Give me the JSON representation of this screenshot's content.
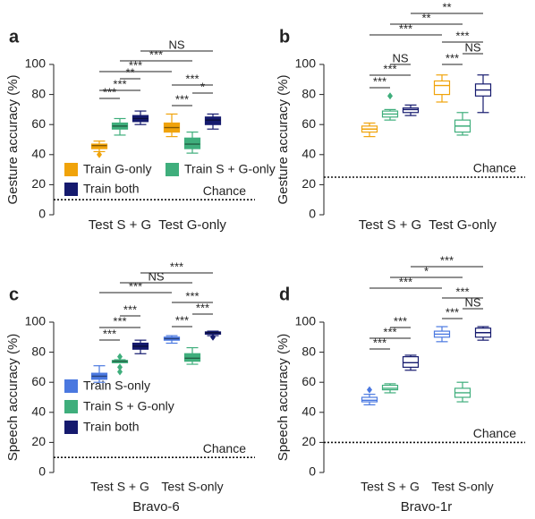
{
  "chart_data": [
    {
      "type": "box",
      "panel": "a",
      "ylabel": "Gesture accuracy (%)",
      "categories": [
        "Test S + G",
        "Test G-only"
      ],
      "ylim": [
        0,
        100
      ],
      "yticks": [
        0,
        20,
        40,
        60,
        80,
        100
      ],
      "filled": true,
      "chance": {
        "value": 10,
        "label": "Chance"
      },
      "series": [
        {
          "name": "Train G-only",
          "color": "#f0a30a",
          "values": [
            {
              "low": 42,
              "q1": 44,
              "median": 46,
              "q3": 47,
              "high": 49,
              "outliers": [
                40
              ]
            },
            {
              "low": 52,
              "q1": 55,
              "median": 58,
              "q3": 61,
              "high": 67,
              "outliers": []
            }
          ]
        },
        {
          "name": "Train S + G-only",
          "color": "#3fae7c",
          "values": [
            {
              "low": 53,
              "q1": 57,
              "median": 59,
              "q3": 61,
              "high": 64,
              "outliers": []
            },
            {
              "low": 41,
              "q1": 44,
              "median": 47,
              "q3": 51,
              "high": 55,
              "outliers": []
            }
          ]
        },
        {
          "name": "Train both",
          "color": "#151a6e",
          "values": [
            {
              "low": 60,
              "q1": 62,
              "median": 64,
              "q3": 66,
              "high": 69,
              "outliers": []
            },
            {
              "low": 57,
              "q1": 60,
              "median": 63,
              "q3": 65,
              "high": 67,
              "outliers": []
            }
          ]
        }
      ],
      "comparisons": [
        "***",
        "***",
        "**",
        "***",
        "*",
        "***",
        "***",
        "***",
        "NS"
      ]
    },
    {
      "type": "box",
      "panel": "b",
      "ylabel": "Gesture accuracy (%)",
      "categories": [
        "Test S + G",
        "Test G-only"
      ],
      "ylim": [
        0,
        100
      ],
      "yticks": [
        0,
        20,
        40,
        60,
        80,
        100
      ],
      "filled": false,
      "chance": {
        "value": 25,
        "label": "Chance"
      },
      "series": [
        {
          "color": "#f0a30a",
          "values": [
            {
              "low": 52,
              "q1": 55,
              "median": 57,
              "q3": 59,
              "high": 61,
              "outliers": []
            },
            {
              "low": 75,
              "q1": 80,
              "median": 86,
              "q3": 89,
              "high": 93,
              "outliers": []
            }
          ]
        },
        {
          "color": "#3fae7c",
          "values": [
            {
              "low": 63,
              "q1": 65,
              "median": 67,
              "q3": 69,
              "high": 70,
              "outliers": [
                79
              ]
            },
            {
              "low": 53,
              "q1": 55,
              "median": 59,
              "q3": 63,
              "high": 68,
              "outliers": []
            }
          ]
        },
        {
          "color": "#151a6e",
          "values": [
            {
              "low": 66,
              "q1": 68,
              "median": 70,
              "q3": 71,
              "high": 73,
              "outliers": []
            },
            {
              "low": 68,
              "q1": 79,
              "median": 83,
              "q3": 87,
              "high": 93,
              "outliers": []
            }
          ]
        }
      ],
      "comparisons": [
        "***",
        "***",
        "NS",
        "***",
        "NS",
        "***",
        "***",
        "**",
        "**"
      ]
    },
    {
      "type": "box",
      "panel": "c",
      "ylabel": "Speech accuracy (%)",
      "xlabel": "Bravo-6",
      "categories": [
        "Test S + G",
        "Test S-only"
      ],
      "ylim": [
        0,
        100
      ],
      "yticks": [
        0,
        20,
        40,
        60,
        80,
        100
      ],
      "filled": true,
      "chance": {
        "value": 10,
        "label": "Chance"
      },
      "series": [
        {
          "name": "Train S-only",
          "color": "#4a78e0",
          "values": [
            {
              "low": 60,
              "q1": 62,
              "median": 64,
              "q3": 66,
              "high": 71,
              "outliers": []
            },
            {
              "low": 86,
              "q1": 88,
              "median": 89,
              "q3": 90,
              "high": 91,
              "outliers": []
            }
          ]
        },
        {
          "name": "Train S + G-only",
          "color": "#3fae7c",
          "values": [
            {
              "low": 73,
              "q1": 73,
              "median": 74,
              "q3": 74.5,
              "high": 75,
              "outliers": [
                67,
                70,
                77
              ]
            },
            {
              "low": 72,
              "q1": 74,
              "median": 76,
              "q3": 79,
              "high": 83,
              "outliers": []
            }
          ]
        },
        {
          "name": "Train both",
          "color": "#151a6e",
          "values": [
            {
              "low": 79,
              "q1": 82,
              "median": 84,
              "q3": 86,
              "high": 88,
              "outliers": []
            },
            {
              "low": 91,
              "q1": 92,
              "median": 93,
              "q3": 93.5,
              "high": 94,
              "outliers": [
                90
              ]
            }
          ]
        }
      ],
      "comparisons": [
        "***",
        "***",
        "***",
        "***",
        "***",
        "***",
        "***",
        "NS",
        "***"
      ]
    },
    {
      "type": "box",
      "panel": "d",
      "ylabel": "Speech accuracy (%)",
      "xlabel": "Bravo-1r",
      "categories": [
        "Test S + G",
        "Test S-only"
      ],
      "ylim": [
        0,
        100
      ],
      "yticks": [
        0,
        20,
        40,
        60,
        80,
        100
      ],
      "filled": false,
      "chance": {
        "value": 20,
        "label": "Chance"
      },
      "series": [
        {
          "color": "#4a78e0",
          "values": [
            {
              "low": 45,
              "q1": 47,
              "median": 48,
              "q3": 50,
              "high": 52,
              "outliers": [
                55
              ]
            },
            {
              "low": 87,
              "q1": 90,
              "median": 92,
              "q3": 94,
              "high": 97,
              "outliers": []
            }
          ]
        },
        {
          "color": "#3fae7c",
          "values": [
            {
              "low": 53,
              "q1": 55,
              "median": 56,
              "q3": 58,
              "high": 59,
              "outliers": []
            },
            {
              "low": 47,
              "q1": 50,
              "median": 53,
              "q3": 56,
              "high": 60,
              "outliers": []
            }
          ]
        },
        {
          "color": "#151a6e",
          "values": [
            {
              "low": 68,
              "q1": 70,
              "median": 73,
              "q3": 77,
              "high": 78,
              "outliers": []
            },
            {
              "low": 88,
              "q1": 90,
              "median": 93,
              "q3": 96,
              "high": 97,
              "outliers": []
            }
          ]
        }
      ],
      "comparisons": [
        "***",
        "***",
        "***",
        "***",
        "NS",
        "***",
        "***",
        "*",
        "***"
      ]
    }
  ]
}
